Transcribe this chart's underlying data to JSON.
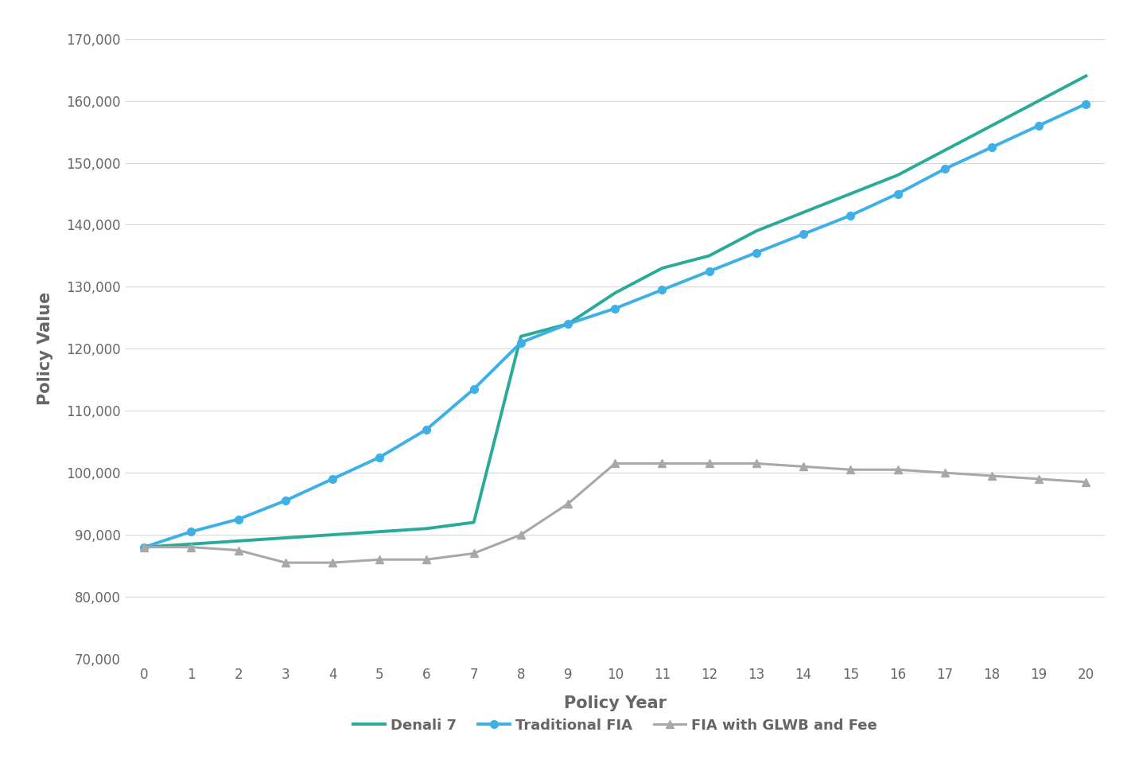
{
  "title": "",
  "xlabel": "Policy Year",
  "ylabel": "Policy Value",
  "x": [
    0,
    1,
    2,
    3,
    4,
    5,
    6,
    7,
    8,
    9,
    10,
    11,
    12,
    13,
    14,
    15,
    16,
    17,
    18,
    19,
    20
  ],
  "denali7": [
    88000,
    88500,
    89000,
    89500,
    90000,
    90500,
    91000,
    92000,
    122000,
    124000,
    129000,
    133000,
    135000,
    139000,
    142000,
    145000,
    148000,
    152000,
    156000,
    160000,
    164000
  ],
  "traditional_fia": [
    88000,
    90500,
    92500,
    95500,
    99000,
    102500,
    107000,
    113500,
    121000,
    124000,
    126500,
    129500,
    132500,
    135500,
    138500,
    141500,
    145000,
    149000,
    152500,
    156000,
    159500
  ],
  "fia_glwb": [
    88000,
    88000,
    87500,
    85500,
    85500,
    86000,
    86000,
    87000,
    90000,
    95000,
    101500,
    101500,
    101500,
    101500,
    101000,
    100500,
    100500,
    100000,
    99500,
    99000,
    98500
  ],
  "denali_color": "#2aab98",
  "fia_color": "#3db0e8",
  "glwb_color": "#a8a8a8",
  "background_color": "#ffffff",
  "grid_color": "#d8d8d8",
  "ylim_min": 70000,
  "ylim_max": 170000,
  "ytick_step": 10000,
  "legend_labels": [
    "Denali 7",
    "Traditional FIA",
    "FIA with GLWB and Fee"
  ]
}
